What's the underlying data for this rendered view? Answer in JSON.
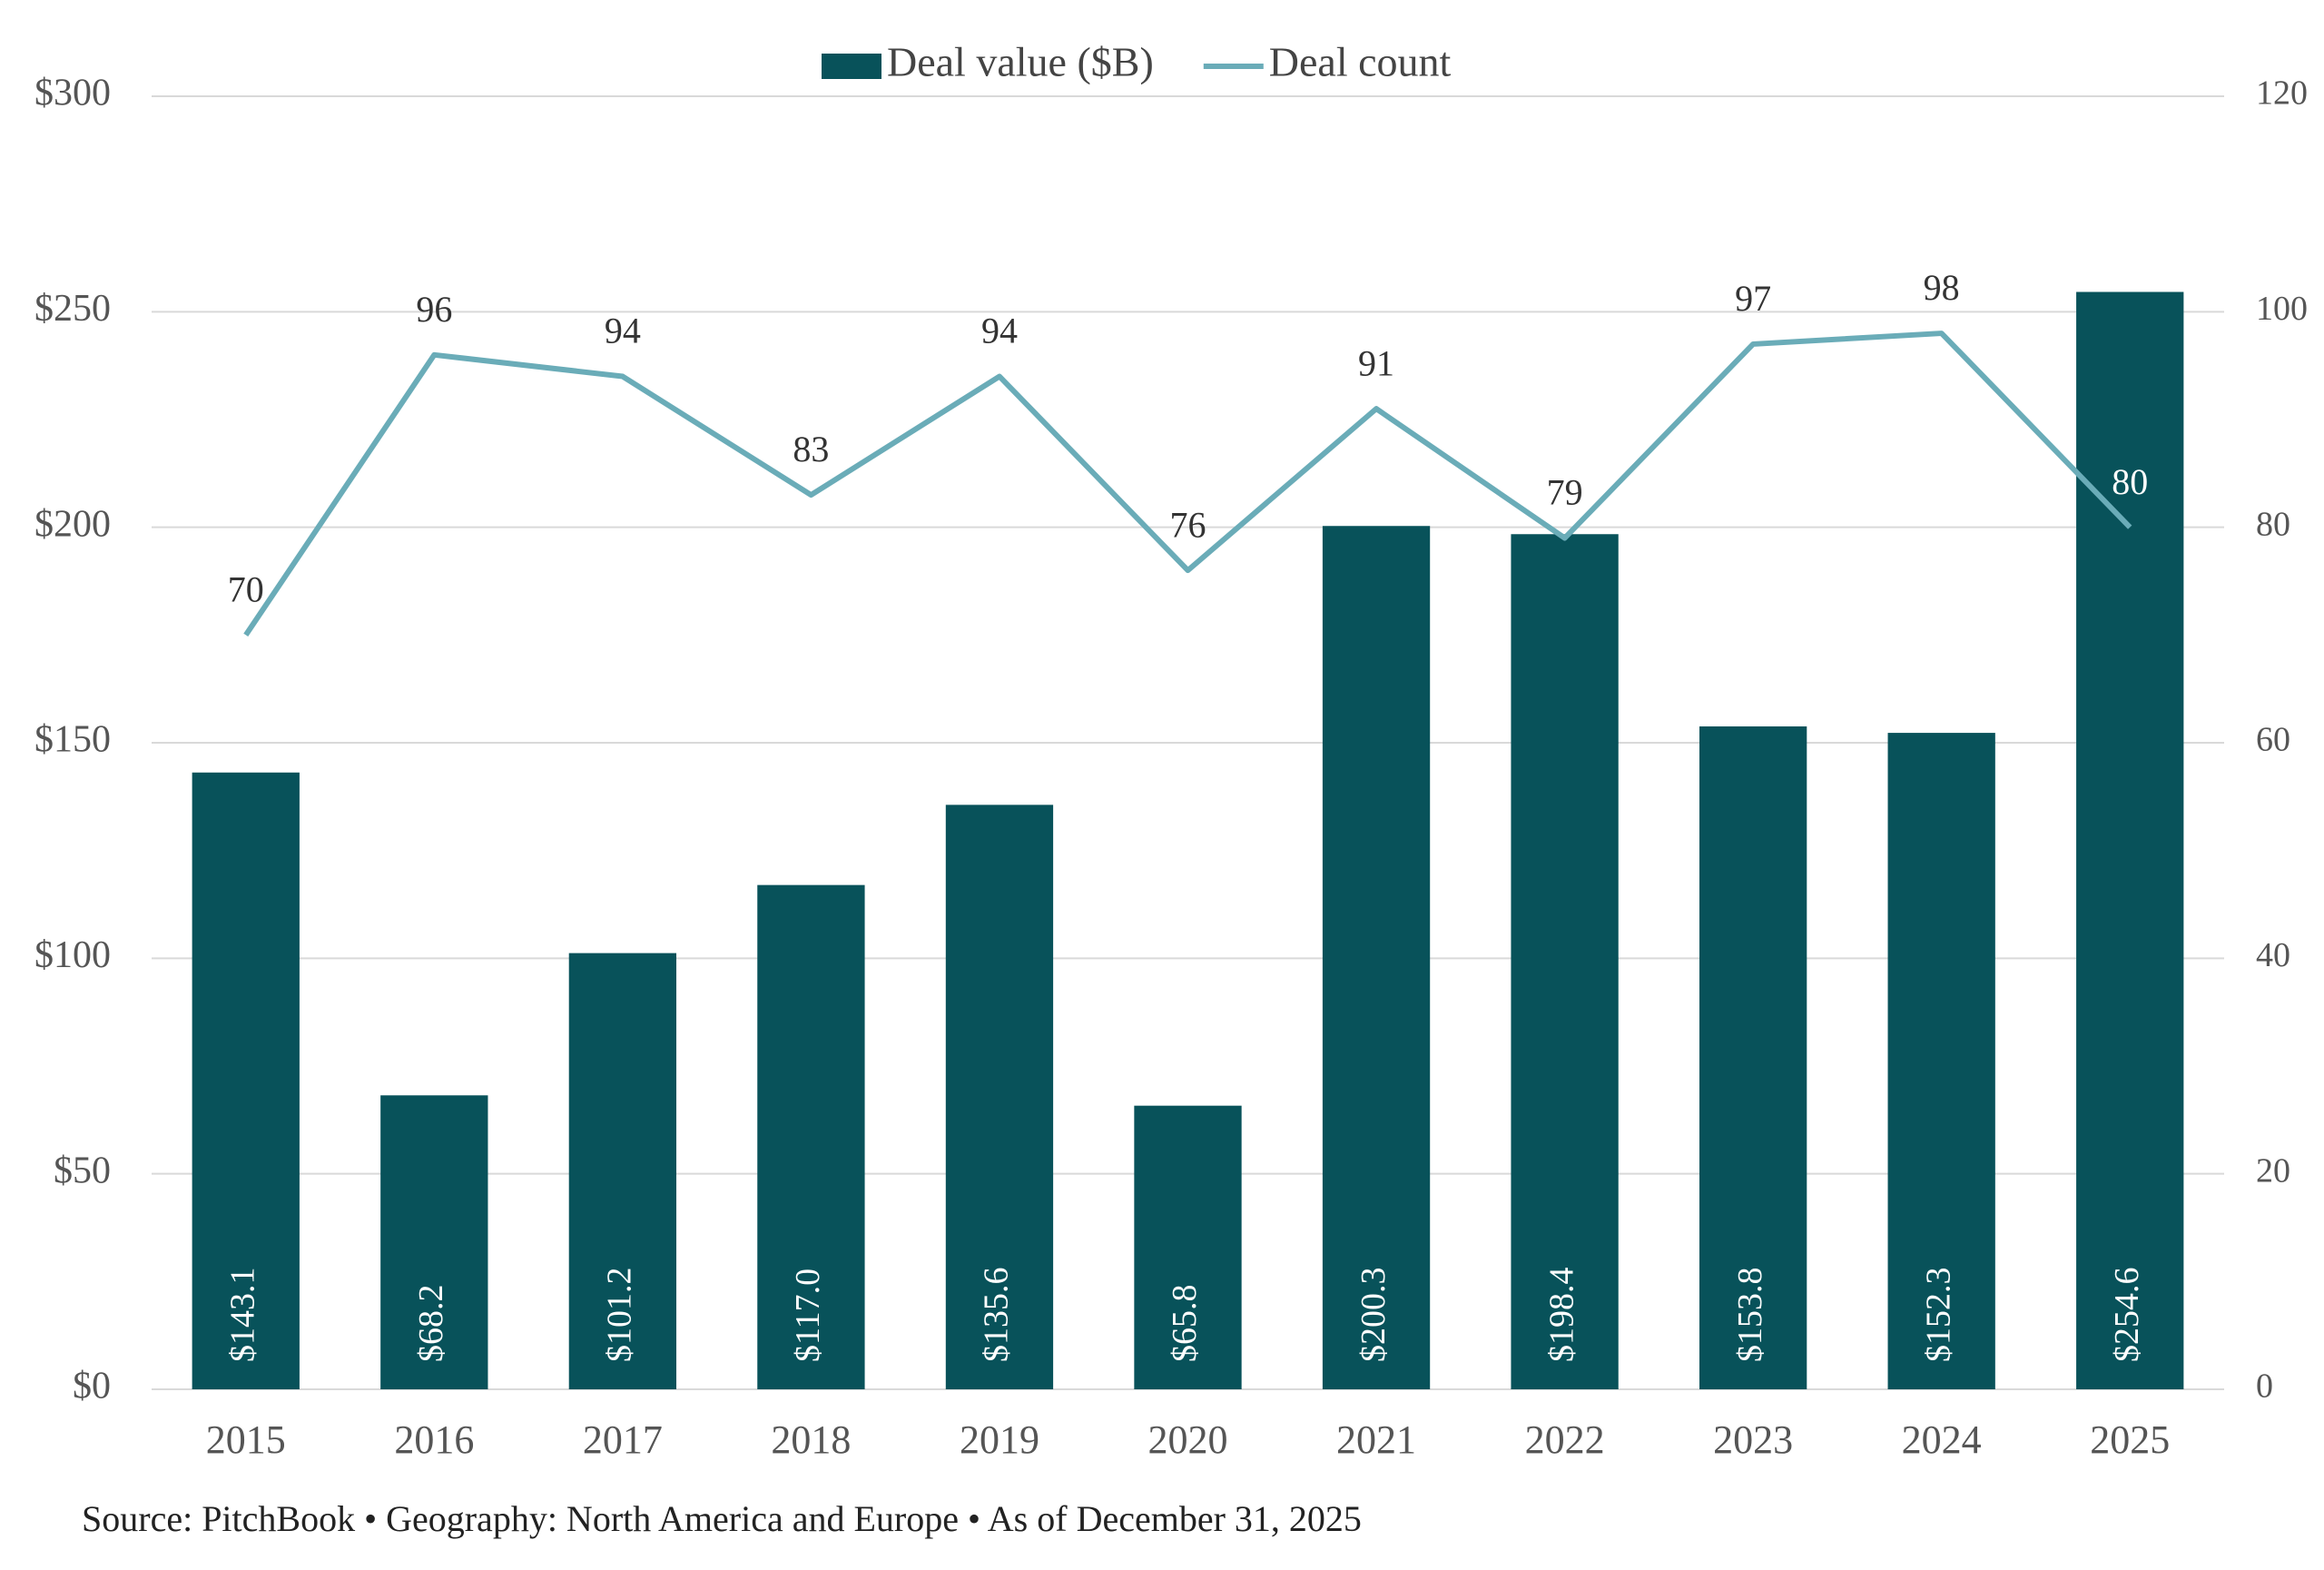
{
  "chart_data": {
    "type": "bar",
    "categories": [
      "2015",
      "2016",
      "2017",
      "2018",
      "2019",
      "2020",
      "2021",
      "2022",
      "2023",
      "2024",
      "2025"
    ],
    "series": [
      {
        "name": "Deal value ($B)",
        "type": "bar",
        "color": "#08525a",
        "values": [
          143.1,
          68.2,
          101.2,
          117.0,
          135.6,
          65.8,
          200.3,
          198.4,
          153.8,
          152.3,
          254.6
        ],
        "value_labels": [
          "$143.1",
          "$68.2",
          "$101.2",
          "$117.0",
          "$135.6",
          "$65.8",
          "$200.3",
          "$198.4",
          "$153.8",
          "$152.3",
          "$254.6"
        ]
      },
      {
        "name": "Deal count",
        "type": "line",
        "axis": "y2",
        "color": "#6aacb8",
        "values": [
          70,
          96,
          94,
          83,
          94,
          76,
          91,
          79,
          97,
          98,
          80
        ]
      }
    ],
    "ylim": [
      0,
      300
    ],
    "yticks": [
      {
        "value": 0,
        "label": "$0"
      },
      {
        "value": 50,
        "label": "$50"
      },
      {
        "value": 100,
        "label": "$100"
      },
      {
        "value": 150,
        "label": "$150"
      },
      {
        "value": 200,
        "label": "$200"
      },
      {
        "value": 250,
        "label": "$250"
      },
      {
        "value": 300,
        "label": "$300"
      }
    ],
    "y2lim": [
      0,
      120
    ],
    "y2ticks": [
      0,
      20,
      40,
      60,
      80,
      100,
      120
    ],
    "grid": true,
    "legend": "top",
    "source": "Source: PitchBook  •  Geography: North America and Europe  •  As of December 31, 2025"
  }
}
